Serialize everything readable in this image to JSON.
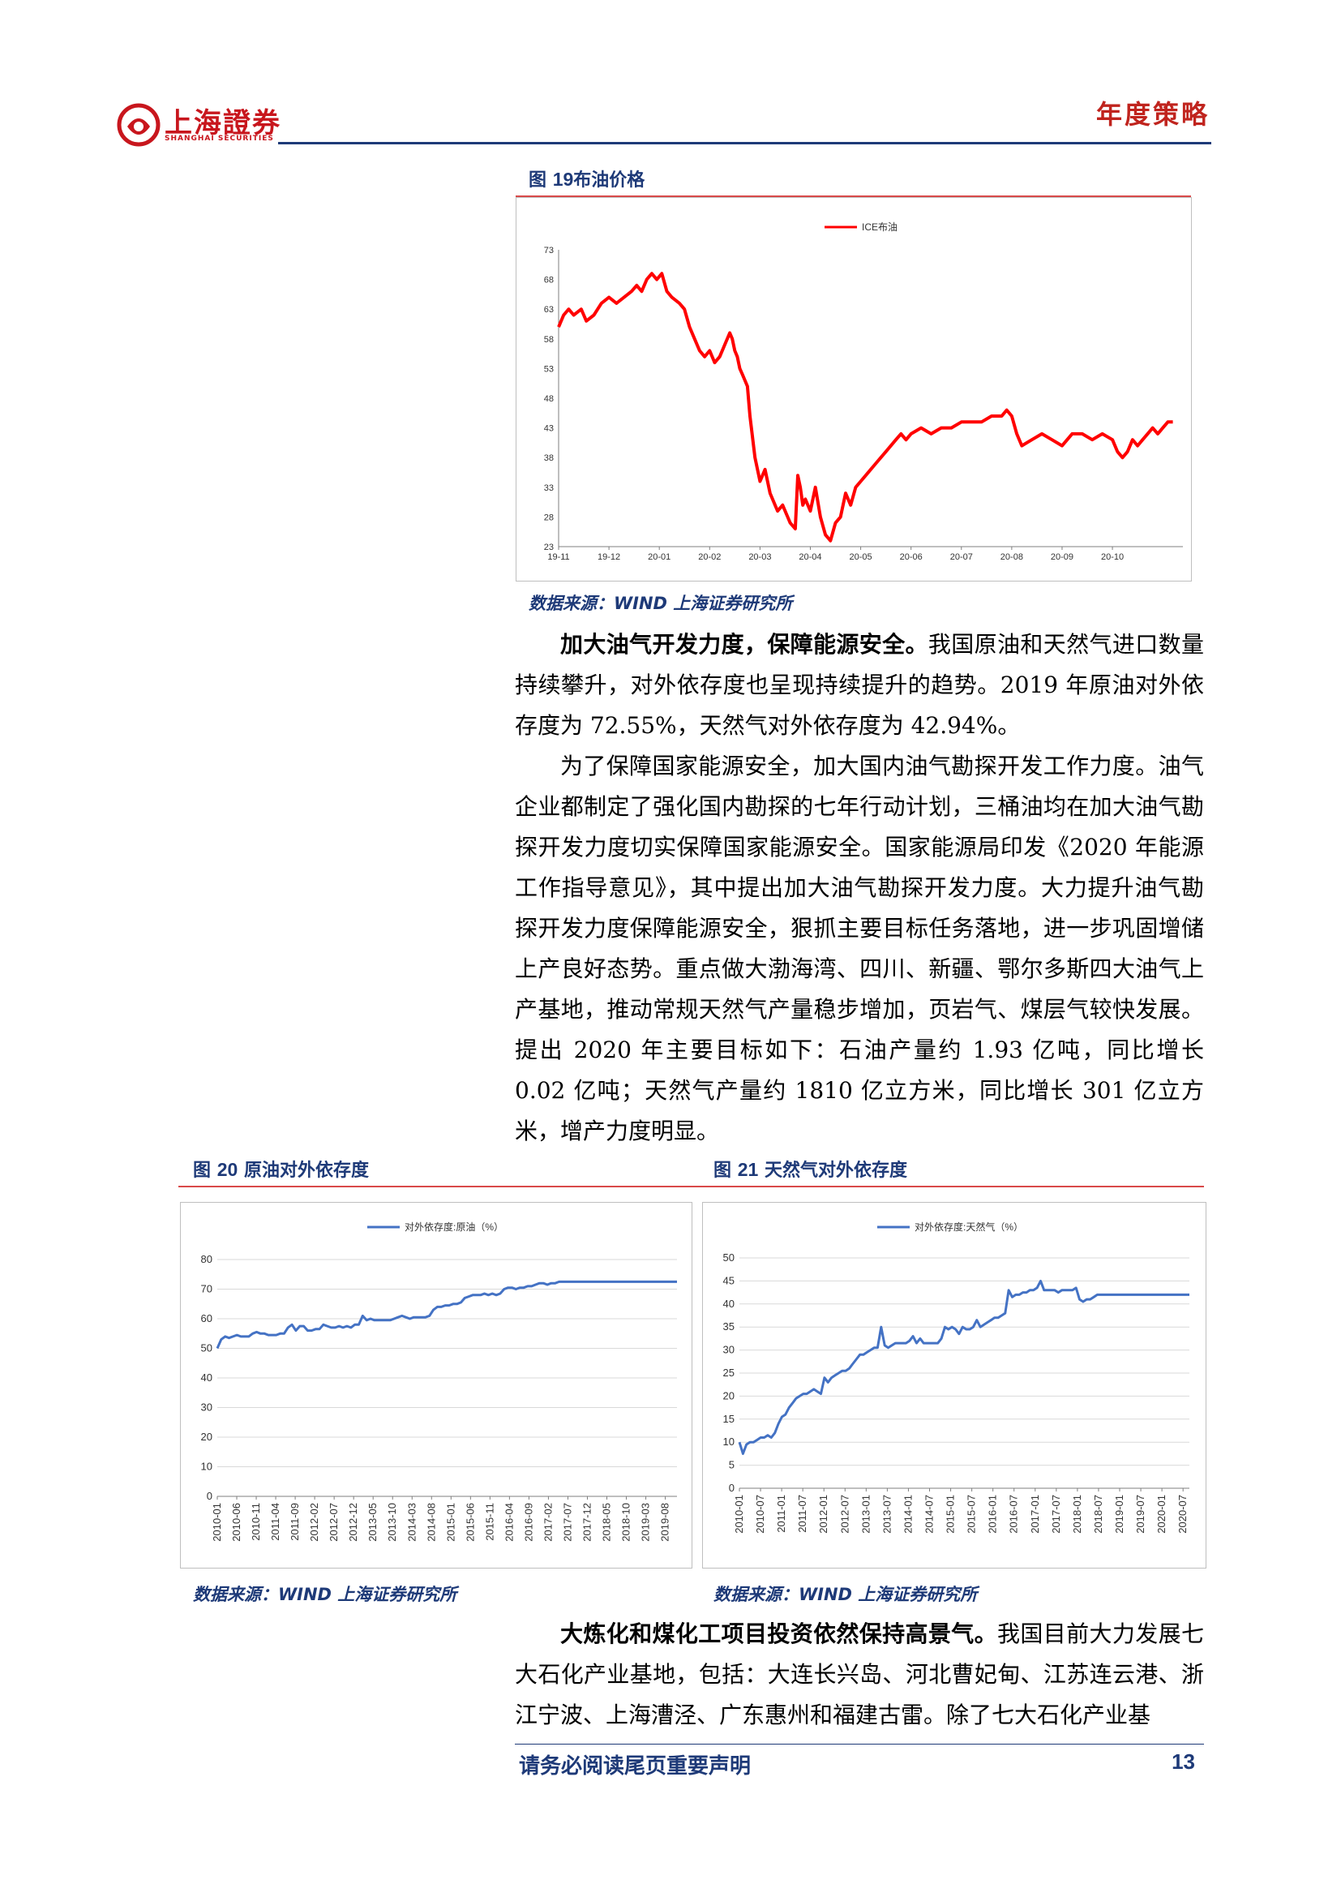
{
  "header": {
    "logo_text": "上海證券",
    "logo_sub": "SHANGHAI SECURITIES",
    "section": "年度策略"
  },
  "figure19": {
    "label": "图",
    "number": "19",
    "title": "布油价格",
    "source": "数据来源：WIND 上海证券研究所"
  },
  "figure20": {
    "label": "图",
    "number": "20",
    "title": "原油对外依存度",
    "source": "数据来源：WIND 上海证券研究所"
  },
  "figure21": {
    "label": "图",
    "number": "21",
    "title": "天然气对外依存度",
    "source": "数据来源：WIND 上海证券研究所"
  },
  "body": {
    "para1_bold": "加大油气开发力度，保障能源安全。",
    "para1_rest": "我国原油和天然气进口数量持续攀升，对外依存度也呈现持续提升的趋势。2019 年原油对外依存度为 72.55%，天然气对外依存度为 42.94%。",
    "para2": "为了保障国家能源安全，加大国内油气勘探开发工作力度。油气企业都制定了强化国内勘探的七年行动计划，三桶油均在加大油气勘探开发力度切实保障国家能源安全。国家能源局印发《2020 年能源工作指导意见》，其中提出加大油气勘探开发力度。大力提升油气勘探开发力度保障能源安全，狠抓主要目标任务落地，进一步巩固增储上产良好态势。重点做大渤海湾、四川、新疆、鄂尔多斯四大油气上产基地，推动常规天然气产量稳步增加，页岩气、煤层气较快发展。提出 2020 年主要目标如下：石油产量约 1.93 亿吨，同比增长 0.02 亿吨；天然气产量约 1810 亿立方米，同比增长 301 亿立方米，增产力度明显。",
    "para3_bold": "大炼化和煤化工项目投资依然保持高景气。",
    "para3_rest": "我国目前大力发展七大石化产业基地，包括：大连长兴岛、河北曹妃甸、江苏连云港、浙江宁波、上海漕泾、广东惠州和福建古雷。除了七大石化产业基"
  },
  "footer": {
    "notice": "请务必阅读尾页重要声明",
    "page": "13"
  },
  "chart_data": [
    {
      "type": "line",
      "legend": [
        "ICE布油"
      ],
      "legend_position": "top",
      "color": "#ff0000",
      "ylim": [
        23,
        73
      ],
      "yticks": [
        23,
        28,
        33,
        38,
        43,
        48,
        53,
        58,
        63,
        68,
        73
      ],
      "xtick_labels": [
        "19-11",
        "19-12",
        "20-01",
        "20-02",
        "20-03",
        "20-04",
        "20-05",
        "20-06",
        "20-07",
        "20-08",
        "20-09",
        "20-10"
      ],
      "xlim": [
        0,
        12.4
      ],
      "series": [
        {
          "name": "ICE布油",
          "x": [
            0,
            0.1,
            0.2,
            0.3,
            0.45,
            0.55,
            0.7,
            0.85,
            1.0,
            1.15,
            1.3,
            1.45,
            1.55,
            1.65,
            1.75,
            1.85,
            1.95,
            2.05,
            2.15,
            2.25,
            2.4,
            2.5,
            2.6,
            2.7,
            2.8,
            2.9,
            3.0,
            3.1,
            3.2,
            3.3,
            3.4,
            3.45,
            3.5,
            3.55,
            3.6,
            3.65,
            3.7,
            3.75,
            3.8,
            3.9,
            4.0,
            4.1,
            4.2,
            4.3,
            4.35,
            4.45,
            4.55,
            4.6,
            4.7,
            4.75,
            4.8,
            4.85,
            4.9,
            5.0,
            5.1,
            5.2,
            5.3,
            5.4,
            5.5,
            5.6,
            5.7,
            5.8,
            5.9,
            6.0,
            6.1,
            6.2,
            6.3,
            6.4,
            6.5,
            6.6,
            6.7,
            6.8,
            6.9,
            7.0,
            7.2,
            7.4,
            7.6,
            7.8,
            8.0,
            8.2,
            8.4,
            8.6,
            8.8,
            8.9,
            9.0,
            9.1,
            9.2,
            9.4,
            9.6,
            9.8,
            10.0,
            10.2,
            10.4,
            10.6,
            10.8,
            11.0,
            11.1,
            11.2,
            11.3,
            11.4,
            11.5,
            11.6,
            11.7,
            11.8,
            11.9,
            12.0,
            12.1,
            12.2
          ],
          "values": [
            60,
            62,
            63,
            62,
            63,
            61,
            62,
            64,
            65,
            64,
            65,
            66,
            67,
            66,
            68,
            69,
            68,
            69,
            66,
            65,
            64,
            63,
            60,
            58,
            56,
            55,
            56,
            54,
            55,
            57,
            59,
            58,
            56,
            55,
            53,
            52,
            51,
            50,
            45,
            38,
            34,
            36,
            32,
            30,
            29,
            30,
            28,
            27,
            26,
            35,
            33,
            30,
            31,
            29,
            33,
            28,
            25,
            24,
            27,
            28,
            32,
            30,
            33,
            34,
            35,
            36,
            37,
            38,
            39,
            40,
            41,
            42,
            41,
            42,
            43,
            42,
            43,
            43,
            44,
            44,
            44,
            45,
            45,
            46,
            45,
            42,
            40,
            41,
            42,
            41,
            40,
            42,
            42,
            41,
            42,
            41,
            39,
            38,
            39,
            41,
            40,
            41,
            42,
            43,
            42,
            43,
            44,
            44
          ]
        }
      ]
    },
    {
      "type": "line",
      "legend": [
        "对外依存度:原油（%）"
      ],
      "legend_position": "top",
      "color": "#4472c4",
      "ylim": [
        0,
        80
      ],
      "yticks": [
        0,
        10,
        20,
        30,
        40,
        50,
        60,
        70,
        80
      ],
      "xtick_labels": [
        "2010-01",
        "2010-06",
        "2010-11",
        "2011-04",
        "2011-09",
        "2012-02",
        "2012-07",
        "2012-12",
        "2013-05",
        "2013-10",
        "2014-03",
        "2014-08",
        "2015-01",
        "2015-06",
        "2015-11",
        "2016-04",
        "2016-09",
        "2017-02",
        "2017-07",
        "2017-12",
        "2018-05",
        "2018-10",
        "2019-03",
        "2019-08"
      ],
      "series": [
        {
          "name": "对外依存度:原油（%）",
          "x": [
            0,
            2,
            4,
            6,
            8,
            10,
            12,
            14,
            16,
            18,
            20,
            22,
            24,
            26,
            28,
            30,
            32,
            34,
            36,
            38,
            40,
            42,
            44,
            46,
            48,
            50,
            52,
            54,
            56,
            58,
            60,
            62,
            64,
            66,
            68,
            70,
            72,
            74,
            76,
            78,
            80,
            82,
            84,
            86,
            88,
            90,
            92,
            94,
            96,
            98,
            100,
            102,
            104,
            106,
            108,
            110,
            112,
            114,
            116,
            118,
            120,
            122,
            124,
            126,
            128,
            130,
            132,
            134,
            136,
            138,
            140,
            142,
            144,
            146,
            148,
            150,
            152,
            154,
            156,
            158,
            160,
            162,
            164,
            166,
            168,
            170,
            172,
            174,
            176,
            178,
            180,
            182,
            184,
            186,
            188,
            190,
            192,
            194,
            196,
            198,
            200,
            202,
            204,
            206,
            208,
            210,
            212,
            214,
            216,
            218,
            220,
            222,
            224,
            226,
            228,
            230,
            232,
            234
          ],
          "values": [
            50,
            53,
            54,
            53.5,
            54,
            54.5,
            54,
            54,
            54,
            55,
            55.5,
            55,
            55,
            54.5,
            54.5,
            54.5,
            55,
            55,
            57,
            58,
            56,
            57.5,
            57.5,
            56,
            56,
            56.5,
            56.5,
            58,
            57.5,
            57,
            57,
            57.5,
            57,
            57.5,
            57,
            58,
            58,
            61,
            59.5,
            60,
            59.5,
            59.5,
            59.5,
            59.5,
            59.5,
            60,
            60.5,
            61,
            60.5,
            60,
            60.5,
            60.5,
            60.5,
            60.5,
            61,
            63,
            64,
            64,
            64.5,
            64.5,
            65,
            65,
            65.5,
            67,
            67.5,
            68,
            68,
            68,
            68.5,
            68,
            68.5,
            68,
            68.5,
            70,
            70.5,
            70.5,
            70,
            70.5,
            70.5,
            71,
            71,
            71.5,
            72,
            72,
            71.5,
            72,
            72,
            72.5,
            72.5,
            72.5,
            72.5,
            72.5,
            72.5,
            72.5,
            72.5,
            72.5,
            72.5,
            72.5,
            72.5,
            72.5,
            72.5,
            72.5,
            72.5,
            72.5,
            72.5,
            72.5,
            72.5,
            72.5,
            72.5,
            72.5,
            72.5,
            72.5,
            72.5,
            72.5,
            72.5,
            72.5,
            72.5,
            72.5
          ]
        }
      ]
    },
    {
      "type": "line",
      "legend": [
        "对外依存度:天然气（%）"
      ],
      "legend_position": "top",
      "color": "#4472c4",
      "ylim": [
        0,
        50
      ],
      "yticks": [
        0,
        5,
        10,
        15,
        20,
        25,
        30,
        35,
        40,
        45,
        50
      ],
      "xtick_labels": [
        "2010-01",
        "2010-07",
        "2011-01",
        "2011-07",
        "2012-01",
        "2012-07",
        "2013-01",
        "2013-07",
        "2014-01",
        "2014-07",
        "2015-01",
        "2015-07",
        "2016-01",
        "2016-07",
        "2017-01",
        "2017-07",
        "2018-01",
        "2018-07",
        "2019-01",
        "2019-07",
        "2020-01",
        "2020-07"
      ],
      "series": [
        {
          "name": "对外依存度:天然气（%）",
          "x": [
            0,
            1,
            2,
            3,
            4,
            5,
            6,
            7,
            8,
            9,
            10,
            11,
            12,
            13,
            14,
            15,
            16,
            17,
            18,
            19,
            20,
            21,
            22,
            23,
            24,
            25,
            26,
            27,
            28,
            29,
            30,
            31,
            32,
            33,
            34,
            35,
            36,
            37,
            38,
            39,
            40,
            41,
            42,
            43,
            44,
            45,
            46,
            47,
            48,
            49,
            50,
            51,
            52,
            53,
            54,
            55,
            56,
            57,
            58,
            59,
            60,
            61,
            62,
            63,
            64,
            65,
            66,
            67,
            68,
            69,
            70,
            71,
            72,
            73,
            74,
            75,
            76,
            77,
            78,
            79,
            80,
            81,
            82,
            83,
            84,
            85,
            86,
            87,
            88,
            89,
            90,
            91,
            92,
            93,
            94,
            95,
            96,
            97,
            98,
            99,
            100,
            101,
            102,
            103,
            104,
            105,
            106,
            107,
            108,
            109,
            110,
            111,
            112,
            113,
            114,
            115,
            116,
            117,
            118,
            119,
            120,
            121,
            122,
            123,
            124,
            125,
            126,
            127
          ],
          "values": [
            10,
            7.5,
            9.5,
            10,
            10,
            10.5,
            11,
            11,
            11.5,
            11,
            12,
            14,
            15.5,
            16,
            17.5,
            18.5,
            19.5,
            20,
            20.5,
            20.5,
            21,
            21.5,
            21,
            20.5,
            24,
            23,
            24,
            24.5,
            25,
            25.5,
            25.5,
            26,
            27,
            28,
            29,
            29,
            29.5,
            30,
            30.5,
            30.5,
            35,
            31,
            30.5,
            31,
            31.5,
            31.5,
            31.5,
            31.5,
            32,
            33,
            31.5,
            32.5,
            31.5,
            31.5,
            31.5,
            31.5,
            31.5,
            32.5,
            35,
            34.5,
            35,
            34.5,
            33.5,
            35,
            34.5,
            34.5,
            35,
            36.5,
            35,
            35.5,
            36,
            36.5,
            37,
            37,
            37.5,
            38,
            43,
            41.5,
            42,
            42,
            42.5,
            42.5,
            43,
            43,
            43.5,
            45,
            43,
            43,
            43,
            43,
            42.5,
            43,
            43,
            43,
            43,
            43.5,
            41,
            40.5,
            41,
            41,
            41.5,
            42,
            42,
            42,
            42,
            42,
            42,
            42,
            42,
            42,
            42,
            42,
            42,
            42,
            42,
            42,
            42,
            42,
            42,
            42,
            42,
            42,
            42,
            42,
            42,
            42,
            42,
            42
          ]
        }
      ]
    }
  ]
}
